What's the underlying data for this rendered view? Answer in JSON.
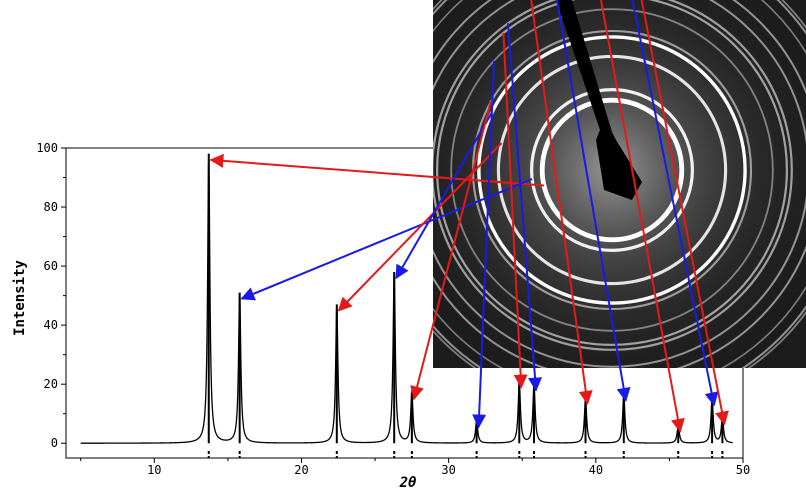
{
  "chart_data": {
    "type": "line",
    "xlabel": "2θ",
    "ylabel": "Intensity",
    "xlim": [
      4,
      50
    ],
    "ylim": [
      -5,
      100
    ],
    "x_ticks": [
      10,
      20,
      30,
      40,
      50
    ],
    "y_ticks": [
      0,
      20,
      40,
      60,
      80,
      100
    ],
    "baseline": 0,
    "peak_width": 0.09,
    "peaks": [
      {
        "x": 13.7,
        "y": 98,
        "family": "red"
      },
      {
        "x": 15.8,
        "y": 51,
        "family": "blue"
      },
      {
        "x": 22.4,
        "y": 47,
        "family": "red"
      },
      {
        "x": 26.3,
        "y": 58,
        "family": "blue"
      },
      {
        "x": 27.5,
        "y": 17,
        "family": "red"
      },
      {
        "x": 31.9,
        "y": 7.5,
        "family": "blue"
      },
      {
        "x": 34.8,
        "y": 21,
        "family": "red"
      },
      {
        "x": 35.8,
        "y": 20,
        "family": "blue"
      },
      {
        "x": 39.3,
        "y": 15.5,
        "family": "red"
      },
      {
        "x": 41.9,
        "y": 16.5,
        "family": "blue"
      },
      {
        "x": 45.6,
        "y": 6,
        "family": "red"
      },
      {
        "x": 47.9,
        "y": 15,
        "family": "blue"
      },
      {
        "x": 48.6,
        "y": 8.5,
        "family": "red"
      }
    ],
    "reference_marks": [
      13.7,
      15.8,
      22.4,
      26.3,
      27.5,
      31.9,
      34.8,
      35.8,
      39.3,
      41.9,
      45.6,
      47.9,
      48.6
    ],
    "grid": false,
    "inset": "electron diffraction ring pattern (dark background, concentric bright rings, beam stop)",
    "colors": {
      "red": "#e41a1a",
      "blue": "#1a1ae6",
      "line": "#000000"
    }
  }
}
